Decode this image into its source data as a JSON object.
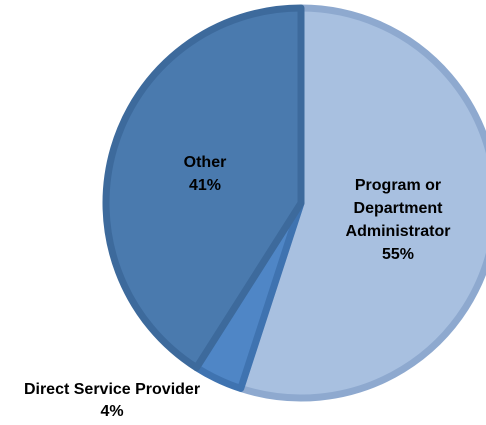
{
  "chart_data": {
    "type": "pie",
    "title": "",
    "slices": [
      {
        "label": "Program or Department Administrator",
        "value": 55,
        "display": "55%"
      },
      {
        "label": "Direct Service Provider",
        "value": 4,
        "display": "4%"
      },
      {
        "label": "Other",
        "value": 41,
        "display": "41%"
      }
    ],
    "colors": {
      "Program or Department Administrator": "#a8c0e0",
      "Direct Service Provider": "#4f86c6",
      "Other": "#4a7aae"
    },
    "edge_colors": {
      "Program or Department Administrator": "#8ea9cf",
      "Direct Service Provider": "#3f73b0",
      "Other": "#3d6a9c"
    },
    "label_color": "#000000",
    "legend": "none"
  },
  "labels": {
    "admin_line1": "Program or",
    "admin_line2": "Department",
    "admin_line3": "Administrator",
    "admin_pct": "55%",
    "other_line1": "Other",
    "other_pct": "41%",
    "dsp_line1": "Direct Service Provider",
    "dsp_pct": "4%"
  }
}
